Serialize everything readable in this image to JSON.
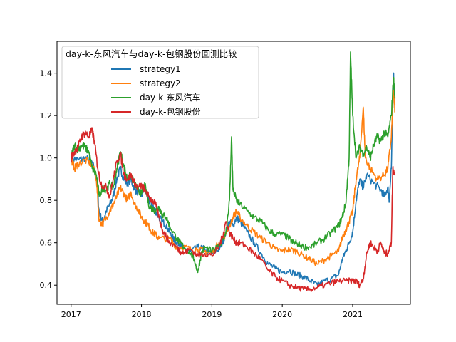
{
  "chart_data": {
    "type": "line",
    "legend_title": "day-k-东风汽车与day-k-包钢股份回测比较",
    "legend_position": "upper-left",
    "grid": false,
    "xlim": [
      2016.8,
      2021.82
    ],
    "ylim": [
      0.31,
      1.55
    ],
    "xticks": [
      2017,
      2018,
      2019,
      2020,
      2021
    ],
    "xtick_labels": [
      "2017",
      "2018",
      "2019",
      "2020",
      "2021"
    ],
    "yticks": [
      0.4,
      0.6,
      0.8,
      1.0,
      1.2,
      1.4
    ],
    "ytick_labels": [
      "0.4",
      "0.6",
      "0.8",
      "1.0",
      "1.2",
      "1.4"
    ],
    "series": [
      {
        "name": "strategy1",
        "color": "#1f77b4",
        "points": [
          [
            2017.0,
            1.0
          ],
          [
            2017.1,
            0.99
          ],
          [
            2017.2,
            1.0
          ],
          [
            2017.3,
            0.98
          ],
          [
            2017.36,
            0.9
          ],
          [
            2017.4,
            0.74
          ],
          [
            2017.45,
            0.7
          ],
          [
            2017.5,
            0.75
          ],
          [
            2017.55,
            0.78
          ],
          [
            2017.6,
            0.82
          ],
          [
            2017.65,
            0.9
          ],
          [
            2017.7,
            0.95
          ],
          [
            2017.75,
            0.9
          ],
          [
            2017.8,
            0.88
          ],
          [
            2017.85,
            0.9
          ],
          [
            2017.9,
            0.85
          ],
          [
            2017.95,
            0.84
          ],
          [
            2018.0,
            0.82
          ],
          [
            2018.05,
            0.86
          ],
          [
            2018.1,
            0.8
          ],
          [
            2018.15,
            0.78
          ],
          [
            2018.2,
            0.75
          ],
          [
            2018.25,
            0.72
          ],
          [
            2018.3,
            0.7
          ],
          [
            2018.35,
            0.68
          ],
          [
            2018.4,
            0.65
          ],
          [
            2018.45,
            0.62
          ],
          [
            2018.5,
            0.6
          ],
          [
            2018.55,
            0.6
          ],
          [
            2018.6,
            0.57
          ],
          [
            2018.7,
            0.56
          ],
          [
            2018.8,
            0.58
          ],
          [
            2018.9,
            0.57
          ],
          [
            2019.0,
            0.55
          ],
          [
            2019.1,
            0.57
          ],
          [
            2019.15,
            0.6
          ],
          [
            2019.2,
            0.65
          ],
          [
            2019.25,
            0.7
          ],
          [
            2019.3,
            0.68
          ],
          [
            2019.35,
            0.72
          ],
          [
            2019.4,
            0.7
          ],
          [
            2019.5,
            0.65
          ],
          [
            2019.6,
            0.6
          ],
          [
            2019.7,
            0.55
          ],
          [
            2019.8,
            0.5
          ],
          [
            2019.9,
            0.48
          ],
          [
            2020.0,
            0.46
          ],
          [
            2020.1,
            0.47
          ],
          [
            2020.2,
            0.45
          ],
          [
            2020.3,
            0.44
          ],
          [
            2020.4,
            0.42
          ],
          [
            2020.5,
            0.4
          ],
          [
            2020.6,
            0.42
          ],
          [
            2020.7,
            0.43
          ],
          [
            2020.8,
            0.45
          ],
          [
            2020.85,
            0.52
          ],
          [
            2020.9,
            0.56
          ],
          [
            2020.95,
            0.6
          ],
          [
            2021.0,
            0.65
          ],
          [
            2021.05,
            0.8
          ],
          [
            2021.1,
            0.9
          ],
          [
            2021.15,
            0.86
          ],
          [
            2021.2,
            0.92
          ],
          [
            2021.3,
            0.88
          ],
          [
            2021.4,
            0.85
          ],
          [
            2021.45,
            0.82
          ],
          [
            2021.5,
            0.86
          ],
          [
            2021.52,
            0.8
          ],
          [
            2021.55,
            0.95
          ],
          [
            2021.58,
            1.4
          ],
          [
            2021.6,
            1.25
          ]
        ]
      },
      {
        "name": "strategy2",
        "color": "#ff7f0e",
        "points": [
          [
            2017.0,
            1.0
          ],
          [
            2017.05,
            0.95
          ],
          [
            2017.1,
            0.97
          ],
          [
            2017.2,
            0.99
          ],
          [
            2017.3,
            0.97
          ],
          [
            2017.36,
            0.9
          ],
          [
            2017.4,
            0.7
          ],
          [
            2017.45,
            0.69
          ],
          [
            2017.5,
            0.72
          ],
          [
            2017.55,
            0.75
          ],
          [
            2017.6,
            0.78
          ],
          [
            2017.65,
            0.82
          ],
          [
            2017.7,
            0.86
          ],
          [
            2017.75,
            0.83
          ],
          [
            2017.8,
            0.8
          ],
          [
            2017.85,
            0.84
          ],
          [
            2017.9,
            0.78
          ],
          [
            2017.95,
            0.76
          ],
          [
            2018.0,
            0.72
          ],
          [
            2018.05,
            0.7
          ],
          [
            2018.1,
            0.68
          ],
          [
            2018.15,
            0.65
          ],
          [
            2018.2,
            0.64
          ],
          [
            2018.25,
            0.62
          ],
          [
            2018.4,
            0.62
          ],
          [
            2018.5,
            0.58
          ],
          [
            2018.6,
            0.58
          ],
          [
            2018.7,
            0.57
          ],
          [
            2018.8,
            0.57
          ],
          [
            2018.9,
            0.56
          ],
          [
            2019.0,
            0.55
          ],
          [
            2019.1,
            0.6
          ],
          [
            2019.2,
            0.64
          ],
          [
            2019.3,
            0.72
          ],
          [
            2019.35,
            0.75
          ],
          [
            2019.4,
            0.72
          ],
          [
            2019.5,
            0.68
          ],
          [
            2019.6,
            0.65
          ],
          [
            2019.7,
            0.62
          ],
          [
            2019.8,
            0.6
          ],
          [
            2019.9,
            0.57
          ],
          [
            2020.0,
            0.56
          ],
          [
            2020.1,
            0.57
          ],
          [
            2020.2,
            0.56
          ],
          [
            2020.3,
            0.54
          ],
          [
            2020.4,
            0.52
          ],
          [
            2020.5,
            0.5
          ],
          [
            2020.6,
            0.52
          ],
          [
            2020.7,
            0.54
          ],
          [
            2020.8,
            0.56
          ],
          [
            2020.85,
            0.62
          ],
          [
            2020.9,
            0.66
          ],
          [
            2020.95,
            0.7
          ],
          [
            2021.0,
            0.75
          ],
          [
            2021.05,
            0.9
          ],
          [
            2021.1,
            1.0
          ],
          [
            2021.15,
            1.24
          ],
          [
            2021.18,
            1.0
          ],
          [
            2021.25,
            0.95
          ],
          [
            2021.35,
            0.9
          ],
          [
            2021.45,
            0.92
          ],
          [
            2021.5,
            0.95
          ],
          [
            2021.55,
            1.1
          ],
          [
            2021.58,
            1.32
          ],
          [
            2021.6,
            1.22
          ]
        ]
      },
      {
        "name": "day-k-东风汽车",
        "color": "#2ca02c",
        "points": [
          [
            2017.0,
            1.0
          ],
          [
            2017.05,
            1.06
          ],
          [
            2017.1,
            1.04
          ],
          [
            2017.15,
            1.06
          ],
          [
            2017.2,
            1.05
          ],
          [
            2017.25,
            1.03
          ],
          [
            2017.3,
            0.95
          ],
          [
            2017.36,
            0.92
          ],
          [
            2017.4,
            0.82
          ],
          [
            2017.45,
            0.86
          ],
          [
            2017.5,
            0.85
          ],
          [
            2017.55,
            0.88
          ],
          [
            2017.6,
            0.86
          ],
          [
            2017.65,
            0.95
          ],
          [
            2017.7,
            1.03
          ],
          [
            2017.75,
            0.96
          ],
          [
            2017.8,
            0.9
          ],
          [
            2017.85,
            0.92
          ],
          [
            2017.9,
            0.88
          ],
          [
            2017.95,
            0.85
          ],
          [
            2018.0,
            0.83
          ],
          [
            2018.05,
            0.87
          ],
          [
            2018.1,
            0.78
          ],
          [
            2018.15,
            0.76
          ],
          [
            2018.2,
            0.75
          ],
          [
            2018.25,
            0.77
          ],
          [
            2018.3,
            0.73
          ],
          [
            2018.35,
            0.72
          ],
          [
            2018.4,
            0.68
          ],
          [
            2018.5,
            0.62
          ],
          [
            2018.55,
            0.6
          ],
          [
            2018.6,
            0.58
          ],
          [
            2018.7,
            0.55
          ],
          [
            2018.75,
            0.52
          ],
          [
            2018.8,
            0.46
          ],
          [
            2018.85,
            0.55
          ],
          [
            2018.9,
            0.58
          ],
          [
            2019.0,
            0.56
          ],
          [
            2019.1,
            0.58
          ],
          [
            2019.2,
            0.65
          ],
          [
            2019.25,
            0.8
          ],
          [
            2019.28,
            1.1
          ],
          [
            2019.3,
            0.85
          ],
          [
            2019.35,
            0.8
          ],
          [
            2019.4,
            0.78
          ],
          [
            2019.5,
            0.75
          ],
          [
            2019.6,
            0.72
          ],
          [
            2019.7,
            0.7
          ],
          [
            2019.8,
            0.66
          ],
          [
            2019.9,
            0.64
          ],
          [
            2020.0,
            0.64
          ],
          [
            2020.1,
            0.62
          ],
          [
            2020.15,
            0.6
          ],
          [
            2020.2,
            0.6
          ],
          [
            2020.3,
            0.58
          ],
          [
            2020.4,
            0.58
          ],
          [
            2020.5,
            0.6
          ],
          [
            2020.6,
            0.62
          ],
          [
            2020.7,
            0.65
          ],
          [
            2020.8,
            0.68
          ],
          [
            2020.85,
            0.72
          ],
          [
            2020.9,
            0.78
          ],
          [
            2020.95,
            1.0
          ],
          [
            2020.97,
            1.5
          ],
          [
            2021.0,
            1.2
          ],
          [
            2021.05,
            1.0
          ],
          [
            2021.1,
            1.05
          ],
          [
            2021.15,
            1.02
          ],
          [
            2021.2,
            1.05
          ],
          [
            2021.25,
            1.0
          ],
          [
            2021.3,
            1.06
          ],
          [
            2021.35,
            1.1
          ],
          [
            2021.4,
            1.08
          ],
          [
            2021.45,
            1.12
          ],
          [
            2021.5,
            1.1
          ],
          [
            2021.55,
            1.2
          ],
          [
            2021.58,
            1.38
          ],
          [
            2021.6,
            1.28
          ]
        ]
      },
      {
        "name": "day-k-包钢股份",
        "color": "#d62728",
        "points": [
          [
            2017.0,
            1.0
          ],
          [
            2017.05,
            1.03
          ],
          [
            2017.1,
            1.05
          ],
          [
            2017.15,
            1.1
          ],
          [
            2017.2,
            1.12
          ],
          [
            2017.25,
            1.1
          ],
          [
            2017.3,
            1.13
          ],
          [
            2017.33,
            1.08
          ],
          [
            2017.38,
            0.95
          ],
          [
            2017.42,
            0.88
          ],
          [
            2017.5,
            0.86
          ],
          [
            2017.55,
            0.82
          ],
          [
            2017.6,
            0.9
          ],
          [
            2017.65,
            0.98
          ],
          [
            2017.7,
            1.02
          ],
          [
            2017.75,
            0.92
          ],
          [
            2017.8,
            0.9
          ],
          [
            2017.85,
            0.92
          ],
          [
            2017.9,
            0.88
          ],
          [
            2017.95,
            0.86
          ],
          [
            2018.0,
            0.87
          ],
          [
            2018.05,
            0.85
          ],
          [
            2018.1,
            0.82
          ],
          [
            2018.15,
            0.8
          ],
          [
            2018.2,
            0.78
          ],
          [
            2018.25,
            0.72
          ],
          [
            2018.3,
            0.66
          ],
          [
            2018.35,
            0.63
          ],
          [
            2018.4,
            0.6
          ],
          [
            2018.5,
            0.58
          ],
          [
            2018.55,
            0.56
          ],
          [
            2018.6,
            0.55
          ],
          [
            2018.7,
            0.57
          ],
          [
            2018.8,
            0.54
          ],
          [
            2018.9,
            0.55
          ],
          [
            2019.0,
            0.54
          ],
          [
            2019.1,
            0.58
          ],
          [
            2019.15,
            0.63
          ],
          [
            2019.2,
            0.7
          ],
          [
            2019.25,
            0.65
          ],
          [
            2019.3,
            0.62
          ],
          [
            2019.35,
            0.6
          ],
          [
            2019.4,
            0.6
          ],
          [
            2019.5,
            0.58
          ],
          [
            2019.6,
            0.55
          ],
          [
            2019.7,
            0.52
          ],
          [
            2019.8,
            0.47
          ],
          [
            2019.9,
            0.44
          ],
          [
            2020.0,
            0.42
          ],
          [
            2020.1,
            0.4
          ],
          [
            2020.2,
            0.39
          ],
          [
            2020.3,
            0.38
          ],
          [
            2020.4,
            0.38
          ],
          [
            2020.5,
            0.39
          ],
          [
            2020.6,
            0.4
          ],
          [
            2020.7,
            0.41
          ],
          [
            2020.8,
            0.42
          ],
          [
            2020.9,
            0.42
          ],
          [
            2021.0,
            0.42
          ],
          [
            2021.05,
            0.42
          ],
          [
            2021.1,
            0.4
          ],
          [
            2021.15,
            0.43
          ],
          [
            2021.2,
            0.55
          ],
          [
            2021.25,
            0.6
          ],
          [
            2021.3,
            0.58
          ],
          [
            2021.35,
            0.56
          ],
          [
            2021.4,
            0.6
          ],
          [
            2021.45,
            0.55
          ],
          [
            2021.5,
            0.55
          ],
          [
            2021.55,
            0.6
          ],
          [
            2021.57,
            0.95
          ],
          [
            2021.6,
            0.92
          ]
        ]
      }
    ]
  }
}
